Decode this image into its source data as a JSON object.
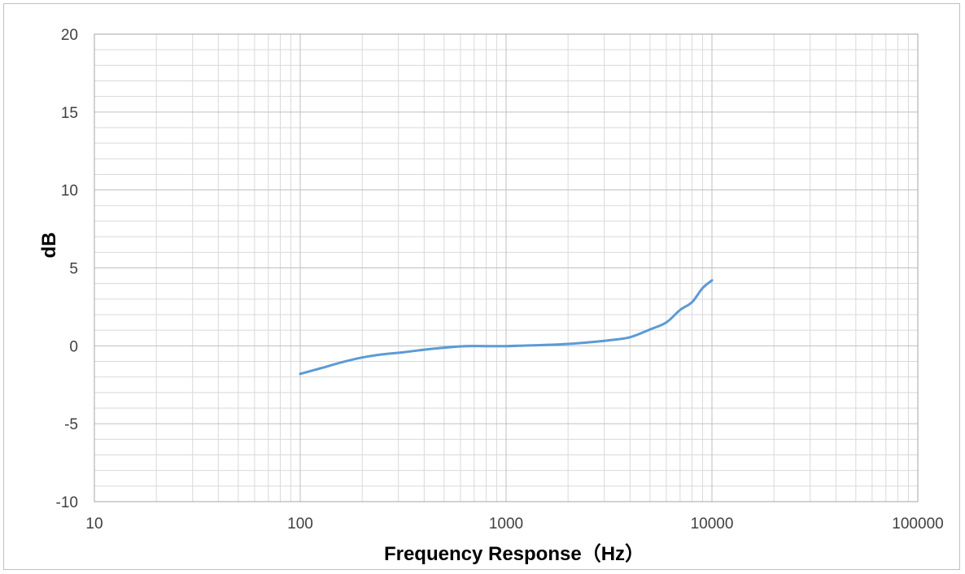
{
  "chart_data": {
    "type": "line",
    "xlabel": "Frequency Response（Hz）",
    "ylabel": "dB",
    "xscale": "log",
    "xlim": [
      10,
      100000
    ],
    "ylim": [
      -10,
      20
    ],
    "grid": true,
    "x_ticks": [
      "10",
      "100",
      "1000",
      "10000",
      "100000"
    ],
    "y_ticks": [
      "20",
      "15",
      "10",
      "5",
      "0",
      "-5",
      "-10"
    ],
    "series": [
      {
        "color": "#5b9bd5",
        "x": [
          100,
          125,
          160,
          200,
          250,
          315,
          400,
          500,
          630,
          800,
          1000,
          1250,
          1600,
          2000,
          2500,
          3150,
          4000,
          5000,
          6000,
          7000,
          8000,
          9000,
          10000
        ],
        "y": [
          -1.8,
          -1.45,
          -1.05,
          -0.75,
          -0.55,
          -0.42,
          -0.25,
          -0.12,
          -0.02,
          -0.02,
          -0.02,
          0.02,
          0.06,
          0.12,
          0.22,
          0.35,
          0.55,
          1.05,
          1.5,
          2.3,
          2.8,
          3.7,
          4.2
        ]
      }
    ]
  }
}
